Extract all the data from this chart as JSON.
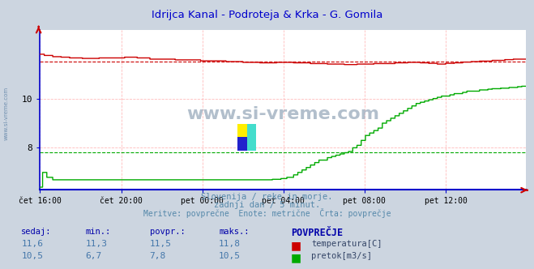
{
  "title": "Idrijca Kanal - Podroteja & Krka - G. Gomila",
  "title_color": "#0000cc",
  "bg_color": "#ccd5e0",
  "plot_bg_color": "#ffffff",
  "xlabel_ticks": [
    "čet 16:00",
    "čet 20:00",
    "pet 00:00",
    "pet 04:00",
    "pet 08:00",
    "pet 12:00"
  ],
  "tick_positions": [
    0,
    96,
    192,
    288,
    384,
    480
  ],
  "total_points": 576,
  "ylim": [
    6.3,
    12.8
  ],
  "yticks": [
    8,
    10
  ],
  "grid_color_h": "#ffbbbb",
  "grid_color_v": "#ffbbbb",
  "axis_color": "#0000cc",
  "temp_color": "#cc0000",
  "flow_color": "#00aa00",
  "temp_avg": 11.5,
  "flow_avg": 7.8,
  "temp_min": 11.3,
  "temp_max": 11.8,
  "temp_now": 11.6,
  "flow_min": 6.7,
  "flow_max": 10.5,
  "flow_now": 10.5,
  "footer_line1": "Slovenija / reke in morje.",
  "footer_line2": "zadnji dan / 5 minut.",
  "footer_line3": "Meritve: povprečne  Enote: metrične  Črta: povprečje",
  "footer_color": "#5588aa",
  "watermark": "www.si-vreme.com",
  "watermark_color": "#99aabb",
  "header_color": "#0000aa",
  "value_color": "#4477aa",
  "label_color": "#334466"
}
